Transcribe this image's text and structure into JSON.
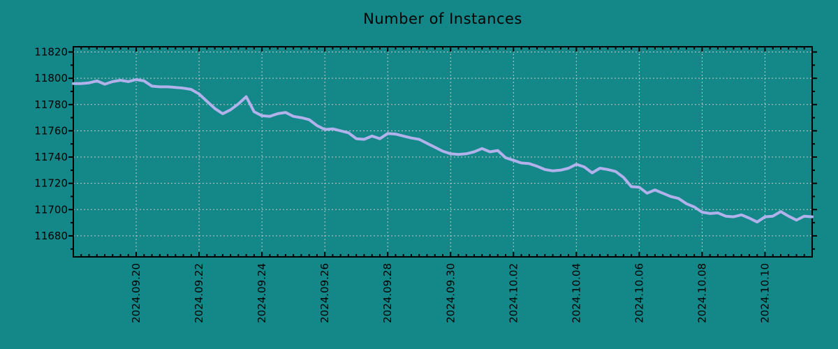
{
  "page": {
    "background_color": "#148789"
  },
  "chart_data": {
    "type": "line",
    "title": "Number of Instances",
    "legend_position": "none",
    "grid": true,
    "x_axis": {
      "kind": "time",
      "start": "2024-09-18 00:00",
      "end": "2024-10-11 12:00",
      "step_hours": 6,
      "tick_labels": [
        "2024.09.20",
        "2024.09.22",
        "2024.09.24",
        "2024.09.26",
        "2024.09.28",
        "2024.09.30",
        "2024.10.02",
        "2024.10.04",
        "2024.10.06",
        "2024.10.08",
        "2024.10.10"
      ],
      "tick_indices": [
        8,
        16,
        24,
        32,
        40,
        48,
        56,
        64,
        72,
        80,
        88
      ],
      "minor_tick_every_index": 1
    },
    "y_axis": {
      "ticks": [
        11680,
        11700,
        11720,
        11740,
        11760,
        11780,
        11800,
        11820
      ],
      "minor_ticks": [
        11670,
        11690,
        11710,
        11730,
        11750,
        11770,
        11790,
        11810
      ],
      "ylim": [
        11664,
        11824
      ]
    },
    "series": [
      {
        "name": "Number of Instances",
        "values": [
          11796,
          11796,
          11796.5,
          11798,
          11795.5,
          11797.5,
          11798.5,
          11797.5,
          11799,
          11798,
          11794,
          11793.5,
          11793.5,
          11793,
          11792.5,
          11791.5,
          11788,
          11782.5,
          11777,
          11773,
          11776,
          11780.5,
          11786,
          11774.5,
          11771.5,
          11771,
          11773,
          11774,
          11771,
          11770,
          11768.5,
          11764,
          11761,
          11761.5,
          11760,
          11758.5,
          11754,
          11753.5,
          11756,
          11754,
          11758,
          11757.5,
          11756,
          11754.5,
          11753.5,
          11750.5,
          11747.5,
          11744.5,
          11742.5,
          11742,
          11742.5,
          11744,
          11746.5,
          11744,
          11745,
          11739.5,
          11737.5,
          11735.5,
          11735,
          11733,
          11730.5,
          11729.5,
          11730,
          11731.5,
          11734.5,
          11732.5,
          11728,
          11731.5,
          11730.5,
          11729,
          11724.5,
          11717.5,
          11717,
          11712.5,
          11715,
          11712.5,
          11710,
          11708.5,
          11704.5,
          11702,
          11698,
          11697,
          11697.5,
          11695,
          11694.5,
          11696,
          11693.5,
          11690.5,
          11694.5,
          11695,
          11698.5,
          11695,
          11692,
          11695,
          11694.5
        ]
      }
    ],
    "colors": {
      "background": "#148789",
      "line": "#b1b1eb",
      "grid": "#c8c8c8",
      "axis": "#000000",
      "text": "#000000"
    }
  }
}
